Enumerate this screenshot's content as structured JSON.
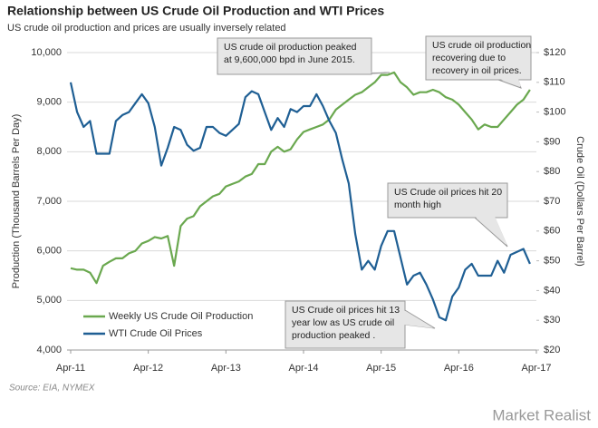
{
  "chart_data": {
    "type": "line",
    "title": "Relationship between US Crude Oil Production and WTI Prices",
    "subtitle": "US crude oil production and prices are usually inversely related",
    "y_label": "Production (Thousand  Barrels Per Day)",
    "y2_label": "Crude Oil (Dollars Per Barrel)",
    "source": "Source: EIA, NYMEX",
    "watermark": "Market Realist",
    "legend": "lower left",
    "grid": true,
    "xlim": [
      2011.25,
      2017.25
    ],
    "xticks": [
      {
        "value": 2011.25,
        "label": "Apr-11"
      },
      {
        "value": 2012.25,
        "label": "Apr-12"
      },
      {
        "value": 2013.25,
        "label": "Apr-13"
      },
      {
        "value": 2014.25,
        "label": "Apr-14"
      },
      {
        "value": 2015.25,
        "label": "Apr-15"
      },
      {
        "value": 2016.25,
        "label": "Apr-16"
      },
      {
        "value": 2017.25,
        "label": "Apr-17"
      }
    ],
    "ylim": [
      4000,
      10000
    ],
    "yticks": [
      {
        "value": 4000,
        "label": "4,000"
      },
      {
        "value": 5000,
        "label": "5,000"
      },
      {
        "value": 6000,
        "label": "6,000"
      },
      {
        "value": 7000,
        "label": "7,000"
      },
      {
        "value": 8000,
        "label": "8,000"
      },
      {
        "value": 9000,
        "label": "9,000"
      },
      {
        "value": 10000,
        "label": "10,000"
      }
    ],
    "y2lim": [
      20,
      120
    ],
    "y2ticks": [
      {
        "value": 20,
        "label": "$20"
      },
      {
        "value": 30,
        "label": "$30"
      },
      {
        "value": 40,
        "label": "$40"
      },
      {
        "value": 50,
        "label": "$50"
      },
      {
        "value": 60,
        "label": "$60"
      },
      {
        "value": 70,
        "label": "$70"
      },
      {
        "value": 80,
        "label": "$80"
      },
      {
        "value": 90,
        "label": "$90"
      },
      {
        "value": 100,
        "label": "$100"
      },
      {
        "value": 110,
        "label": "$110"
      },
      {
        "value": 120,
        "label": "$120"
      }
    ],
    "x": [
      2011.25,
      2011.333,
      2011.417,
      2011.5,
      2011.583,
      2011.667,
      2011.75,
      2011.833,
      2011.917,
      2012.0,
      2012.083,
      2012.167,
      2012.25,
      2012.333,
      2012.417,
      2012.5,
      2012.583,
      2012.667,
      2012.75,
      2012.833,
      2012.917,
      2013.0,
      2013.083,
      2013.167,
      2013.25,
      2013.333,
      2013.417,
      2013.5,
      2013.583,
      2013.667,
      2013.75,
      2013.833,
      2013.917,
      2014.0,
      2014.083,
      2014.167,
      2014.25,
      2014.333,
      2014.417,
      2014.5,
      2014.583,
      2014.667,
      2014.75,
      2014.833,
      2014.917,
      2015.0,
      2015.083,
      2015.167,
      2015.25,
      2015.333,
      2015.417,
      2015.5,
      2015.583,
      2015.667,
      2015.75,
      2015.833,
      2015.917,
      2016.0,
      2016.083,
      2016.167,
      2016.25,
      2016.333,
      2016.417,
      2016.5,
      2016.583,
      2016.667,
      2016.75,
      2016.833,
      2016.917,
      2017.0,
      2017.083,
      2017.167
    ],
    "series": [
      {
        "name": "Weekly US Crude Oil Production",
        "color": "#6aa84f",
        "axis": "y",
        "values": [
          5650,
          5620,
          5620,
          5560,
          5350,
          5700,
          5780,
          5850,
          5850,
          5950,
          6000,
          6150,
          6200,
          6280,
          6250,
          6300,
          5700,
          6500,
          6650,
          6700,
          6900,
          7000,
          7100,
          7150,
          7300,
          7350,
          7400,
          7500,
          7550,
          7750,
          7750,
          8000,
          8100,
          8000,
          8050,
          8250,
          8400,
          8450,
          8500,
          8550,
          8650,
          8850,
          8950,
          9050,
          9150,
          9200,
          9300,
          9400,
          9550,
          9550,
          9600,
          9400,
          9300,
          9150,
          9200,
          9200,
          9250,
          9200,
          9100,
          9050,
          8950,
          8800,
          8650,
          8450,
          8550,
          8500,
          8500,
          8650,
          8800,
          8950,
          9050,
          9250
        ]
      },
      {
        "name": "WTI Crude Oil Prices",
        "color": "#1f5f94",
        "axis": "y2",
        "values": [
          110,
          100,
          95,
          97,
          86,
          86,
          86,
          97,
          99,
          100,
          103,
          106,
          103,
          95,
          82,
          88,
          95,
          94,
          89,
          87,
          88,
          95,
          95,
          93,
          92,
          94,
          96,
          105,
          107,
          106,
          100,
          94,
          98,
          95,
          101,
          100,
          102,
          102,
          106,
          102,
          97,
          93,
          84,
          76,
          59,
          47,
          50,
          47,
          55,
          60,
          60,
          51,
          42,
          45,
          46,
          42,
          37,
          31,
          30,
          38,
          41,
          47,
          49,
          45,
          45,
          45,
          50,
          46,
          52,
          53,
          54,
          49
        ]
      }
    ],
    "annotations": [
      {
        "lines": [
          "US crude oil production peaked",
          "at 9,600,000 bpd in June 2015."
        ]
      },
      {
        "lines": [
          "US crude oil production",
          "recovering due to",
          "recovery in oil prices."
        ]
      },
      {
        "lines": [
          "US Crude oil prices hit 20",
          "month high"
        ]
      },
      {
        "lines": [
          "US Crude oil prices hit 13",
          "year low as US crude oil",
          "production peaked ."
        ]
      }
    ]
  }
}
